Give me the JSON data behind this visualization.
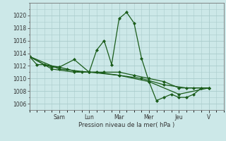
{
  "background_color": "#cce8e8",
  "grid_color": "#aacccc",
  "line_color": "#1a5c1a",
  "marker_color": "#1a5c1a",
  "xlabel": "Pression niveau de la mer( hPa )",
  "ylim": [
    1005,
    1022
  ],
  "yticks": [
    1006,
    1008,
    1010,
    1012,
    1014,
    1016,
    1018,
    1020
  ],
  "day_labels": [
    "Sam",
    "Lun",
    "Mar",
    "Mer",
    "Jeu",
    "V"
  ],
  "day_positions": [
    24,
    48,
    72,
    96,
    120,
    144
  ],
  "xlim": [
    0,
    156
  ],
  "series1": [
    [
      0,
      1013.5
    ],
    [
      6,
      1012.2
    ],
    [
      12,
      1012.2
    ],
    [
      18,
      1011.8
    ],
    [
      24,
      1011.8
    ],
    [
      30,
      1011.5
    ],
    [
      36,
      1011.2
    ],
    [
      42,
      1011.0
    ],
    [
      48,
      1011.0
    ],
    [
      54,
      1014.5
    ],
    [
      60,
      1016.0
    ],
    [
      66,
      1012.2
    ],
    [
      72,
      1019.5
    ],
    [
      78,
      1020.5
    ],
    [
      84,
      1018.8
    ],
    [
      90,
      1013.2
    ],
    [
      96,
      1009.5
    ],
    [
      102,
      1006.5
    ],
    [
      108,
      1007.0
    ],
    [
      114,
      1007.5
    ],
    [
      120,
      1007.0
    ],
    [
      126,
      1007.0
    ],
    [
      132,
      1007.5
    ],
    [
      138,
      1008.5
    ]
  ],
  "series2": [
    [
      0,
      1013.5
    ],
    [
      12,
      1012.2
    ],
    [
      24,
      1011.8
    ],
    [
      36,
      1013.0
    ],
    [
      48,
      1011.0
    ],
    [
      60,
      1011.0
    ],
    [
      72,
      1011.0
    ],
    [
      84,
      1010.5
    ],
    [
      96,
      1010.0
    ],
    [
      108,
      1009.5
    ],
    [
      120,
      1008.5
    ],
    [
      132,
      1008.5
    ],
    [
      144,
      1008.5
    ]
  ],
  "series3": [
    [
      0,
      1013.5
    ],
    [
      18,
      1011.5
    ],
    [
      36,
      1011.0
    ],
    [
      54,
      1011.0
    ],
    [
      72,
      1010.5
    ],
    [
      90,
      1010.0
    ],
    [
      108,
      1009.0
    ],
    [
      126,
      1008.5
    ],
    [
      144,
      1008.5
    ]
  ],
  "series4": [
    [
      0,
      1013.5
    ],
    [
      24,
      1011.5
    ],
    [
      48,
      1011.0
    ],
    [
      72,
      1010.5
    ],
    [
      96,
      1009.5
    ],
    [
      120,
      1007.5
    ],
    [
      144,
      1008.5
    ]
  ]
}
